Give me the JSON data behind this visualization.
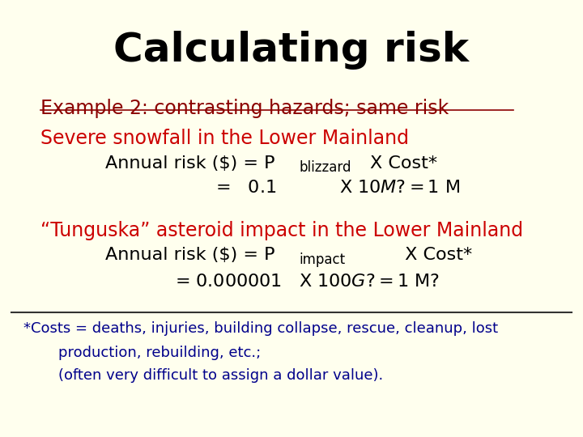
{
  "background_color": "#ffffee",
  "title": "Calculating risk",
  "title_color": "#000000",
  "title_fontsize": 36,
  "example_label": "Example 2: contrasting hazards; same risk",
  "example_color": "#8b0000",
  "example_fontsize": 17,
  "snowfall_header": "Severe snowfall in the Lower Mainland",
  "snowfall_color": "#cc0000",
  "snowfall_fontsize": 17,
  "asteroid_header": "“Tunguska” asteroid impact in the Lower Mainland",
  "asteroid_color": "#cc0000",
  "asteroid_fontsize": 17,
  "body_color": "#000000",
  "footnote_color": "#00008b",
  "footnote_fontsize": 13,
  "main_font": "Comic Sans MS",
  "equation_fontsize": 16
}
